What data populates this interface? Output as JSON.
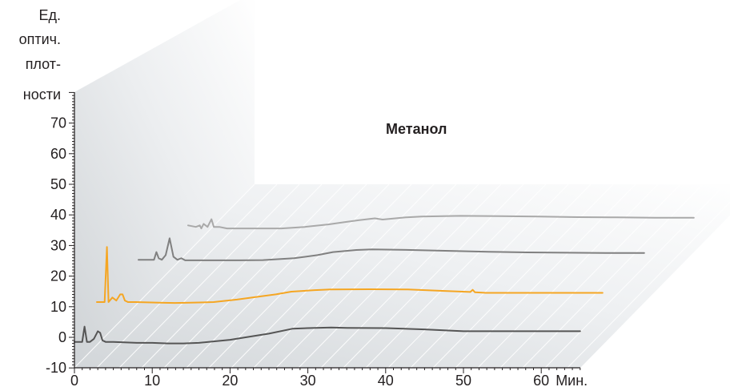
{
  "chart_data": {
    "type": "line",
    "title": "Метанол",
    "ylabel_lines": [
      "Ед.",
      "оптич.",
      "плот-",
      "ности"
    ],
    "x_unit": "Мин.",
    "y_ticks": [
      "70",
      "60",
      "50",
      "40",
      "30",
      "20",
      "10",
      "0",
      "-10"
    ],
    "x_ticks": [
      "0",
      "10",
      "20",
      "30",
      "40",
      "50",
      "60"
    ],
    "ylim": [
      -10,
      80
    ],
    "xlim": [
      0,
      65
    ],
    "series": [
      {
        "color": "#555555",
        "x": [
          0,
          1,
          1.3,
          1.6,
          2,
          2.5,
          3,
          3.3,
          3.6,
          4,
          5,
          8,
          10,
          12,
          14,
          16,
          18,
          20,
          22,
          25,
          28,
          30,
          33,
          35,
          40,
          45,
          50,
          55,
          60,
          65
        ],
        "y": [
          -1.5,
          -1.5,
          3.5,
          -1.5,
          -1.5,
          -0.5,
          2,
          1.5,
          -1,
          -1.5,
          -1.5,
          -1.8,
          -1.8,
          -2,
          -2,
          -1.8,
          -1.3,
          -0.8,
          0,
          1.2,
          2.8,
          3,
          3.2,
          3.1,
          3,
          2.6,
          2,
          2,
          2,
          2
        ]
      },
      {
        "color": "#f5a623",
        "x": [
          0,
          1,
          1.3,
          1.5,
          2,
          2.5,
          3,
          3.3,
          3.6,
          4,
          5,
          8,
          10,
          12,
          15,
          18,
          20,
          23,
          25,
          28,
          30,
          35,
          40,
          45,
          48,
          48.3,
          48.6,
          50,
          55,
          60,
          65
        ],
        "y": [
          0,
          0,
          18,
          0,
          1.5,
          0.5,
          2.5,
          2.5,
          0.5,
          0,
          0,
          -0.2,
          -0.3,
          -0.2,
          0,
          0.8,
          1.5,
          2.5,
          3.4,
          3.9,
          4.1,
          4.2,
          4.1,
          3.6,
          3.3,
          4,
          3.2,
          3,
          3,
          3,
          3
        ]
      },
      {
        "color": "#808080",
        "x": [
          0,
          1,
          2,
          2.3,
          2.6,
          3,
          3.5,
          4,
          4.5,
          5,
          5.5,
          6,
          8,
          10,
          13,
          16,
          20,
          23,
          25,
          28,
          30,
          35,
          40,
          45,
          50,
          55,
          60,
          65
        ],
        "y": [
          1,
          1,
          1,
          3.5,
          1.5,
          1,
          2.5,
          8,
          2,
          1,
          1.5,
          0.8,
          0.8,
          0.8,
          0.8,
          0.9,
          1.5,
          2.5,
          3.5,
          4.2,
          4.4,
          4.2,
          3.9,
          3.6,
          3.4,
          3.3,
          3.2,
          3.2
        ]
      },
      {
        "color": "#a9a9a9",
        "x": [
          0,
          1,
          1.5,
          1.7,
          2,
          2.5,
          3,
          3.3,
          4,
          5,
          8,
          10,
          12,
          15,
          18,
          20,
          22,
          24,
          25,
          28,
          30,
          35,
          40,
          45,
          50,
          55,
          60,
          65
        ],
        "y": [
          1.5,
          1,
          1.5,
          0.5,
          2,
          1,
          3.5,
          1,
          1,
          0.5,
          0.5,
          0.5,
          0.5,
          1,
          1.8,
          2.5,
          3.2,
          3.8,
          3.4,
          4.1,
          4.4,
          4.6,
          4.5,
          4.4,
          4.2,
          4.1,
          4,
          4
        ]
      }
    ]
  }
}
